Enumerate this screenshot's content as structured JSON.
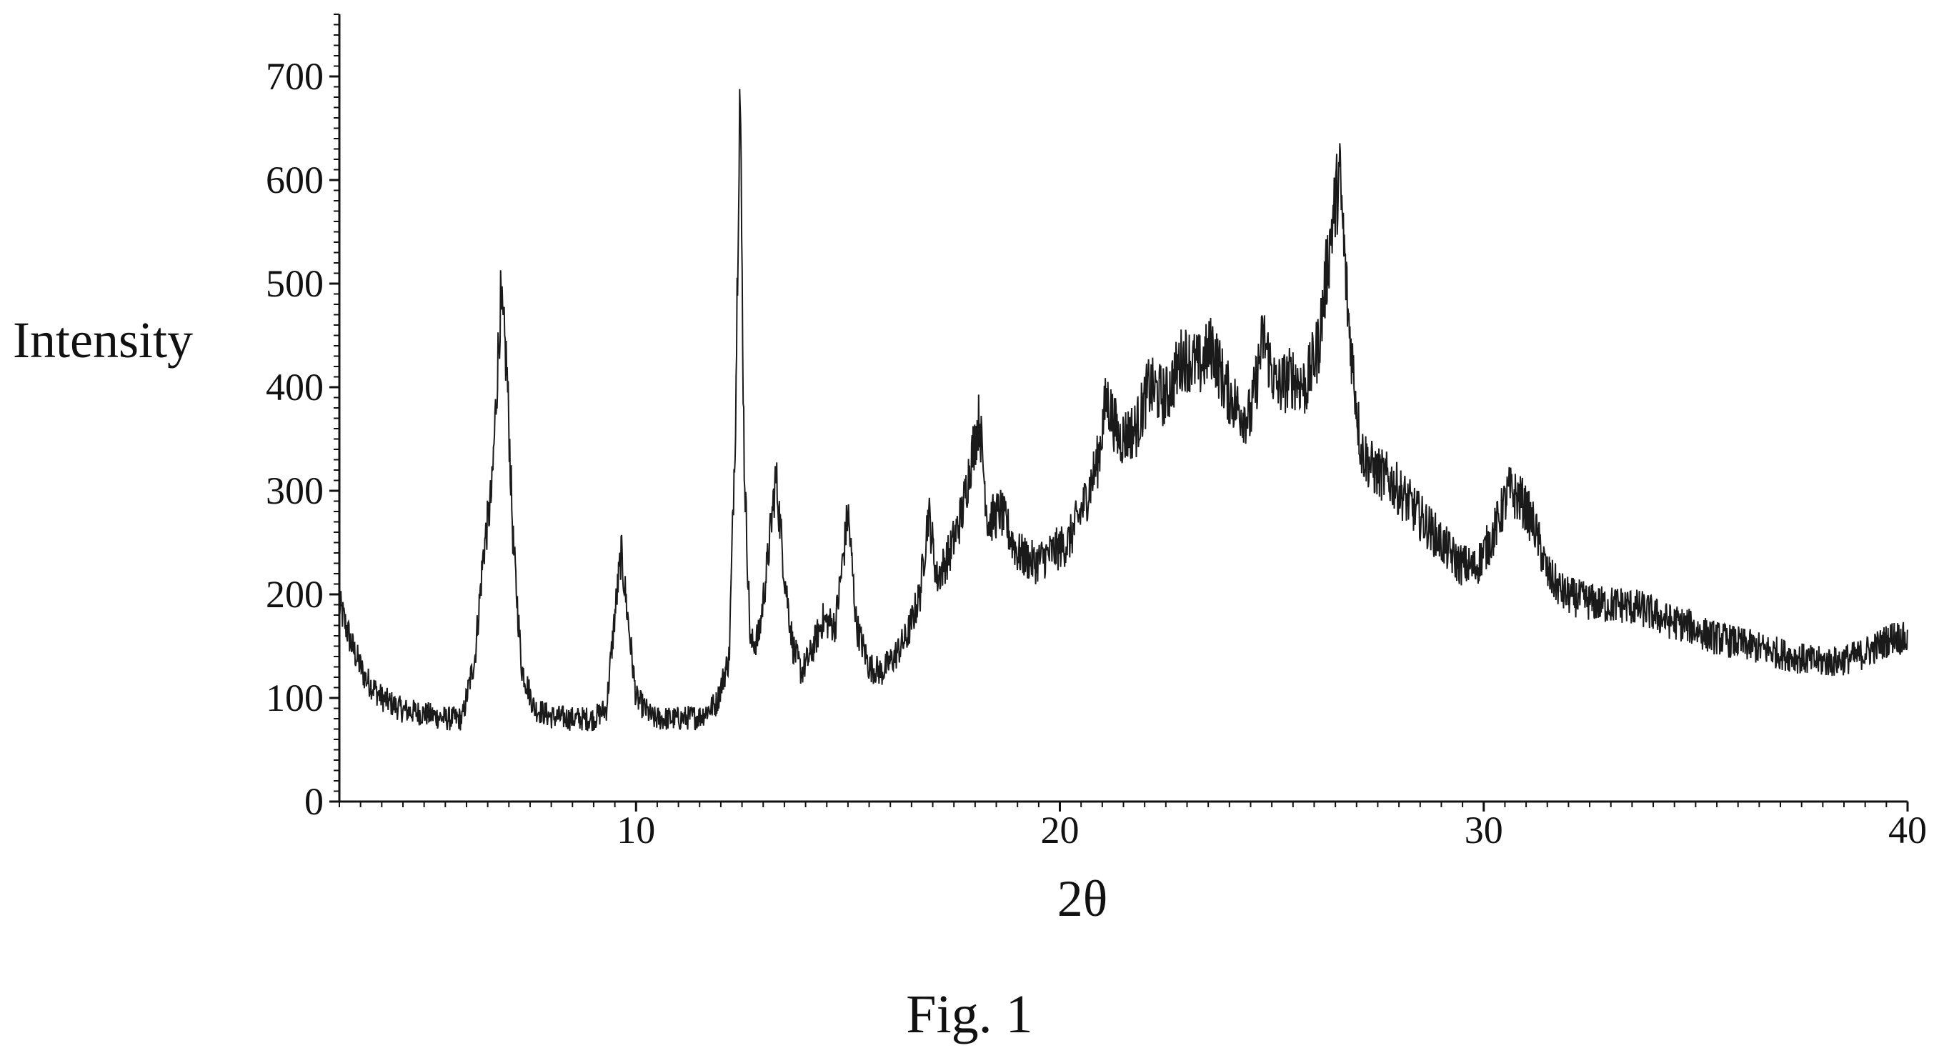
{
  "chart_data": {
    "type": "line",
    "ylabel": "Intensity",
    "xlabel": "2θ",
    "caption": "Fig. 1",
    "xlim": [
      3,
      40
    ],
    "ylim": [
      0,
      760
    ],
    "x_ticks": [
      10,
      20,
      30,
      40
    ],
    "x_tick_labels": [
      "10",
      "20",
      "30",
      "40"
    ],
    "y_ticks": [
      0,
      100,
      200,
      300,
      400,
      500,
      600,
      700
    ],
    "y_tick_labels": [
      "0",
      "100",
      "200",
      "300",
      "400",
      "500",
      "600",
      "700"
    ],
    "grid": false,
    "legend": "none",
    "line_color": "#1a1a1a",
    "series": [
      {
        "values": [
          [
            3.0,
            190
          ],
          [
            3.3,
            150
          ],
          [
            3.6,
            120
          ],
          [
            4.0,
            100
          ],
          [
            4.5,
            88
          ],
          [
            5.0,
            85
          ],
          [
            5.5,
            80
          ],
          [
            5.9,
            80
          ],
          [
            6.2,
            140
          ],
          [
            6.4,
            240
          ],
          [
            6.6,
            300
          ],
          [
            6.8,
            480
          ],
          [
            6.95,
            420
          ],
          [
            7.1,
            250
          ],
          [
            7.3,
            130
          ],
          [
            7.6,
            90
          ],
          [
            8.0,
            82
          ],
          [
            8.5,
            80
          ],
          [
            9.0,
            80
          ],
          [
            9.3,
            90
          ],
          [
            9.5,
            180
          ],
          [
            9.65,
            240
          ],
          [
            9.8,
            180
          ],
          [
            10.0,
            100
          ],
          [
            10.4,
            80
          ],
          [
            11.0,
            80
          ],
          [
            11.5,
            82
          ],
          [
            11.9,
            95
          ],
          [
            12.2,
            140
          ],
          [
            12.35,
            380
          ],
          [
            12.45,
            700
          ],
          [
            12.55,
            330
          ],
          [
            12.7,
            150
          ],
          [
            12.9,
            160
          ],
          [
            13.1,
            230
          ],
          [
            13.3,
            315
          ],
          [
            13.5,
            220
          ],
          [
            13.7,
            150
          ],
          [
            13.9,
            125
          ],
          [
            14.1,
            140
          ],
          [
            14.4,
            175
          ],
          [
            14.7,
            170
          ],
          [
            14.9,
            240
          ],
          [
            15.0,
            280
          ],
          [
            15.2,
            170
          ],
          [
            15.5,
            130
          ],
          [
            15.8,
            125
          ],
          [
            16.1,
            140
          ],
          [
            16.4,
            160
          ],
          [
            16.7,
            200
          ],
          [
            16.9,
            280
          ],
          [
            17.1,
            215
          ],
          [
            17.4,
            240
          ],
          [
            17.7,
            280
          ],
          [
            17.9,
            330
          ],
          [
            18.1,
            370
          ],
          [
            18.3,
            270
          ],
          [
            18.6,
            280
          ],
          [
            19.0,
            240
          ],
          [
            19.4,
            230
          ],
          [
            19.8,
            240
          ],
          [
            20.2,
            250
          ],
          [
            20.6,
            290
          ],
          [
            20.9,
            330
          ],
          [
            21.1,
            390
          ],
          [
            21.4,
            350
          ],
          [
            21.8,
            360
          ],
          [
            22.1,
            400
          ],
          [
            22.5,
            390
          ],
          [
            22.9,
            430
          ],
          [
            23.3,
            420
          ],
          [
            23.6,
            440
          ],
          [
            23.9,
            400
          ],
          [
            24.2,
            380
          ],
          [
            24.5,
            370
          ],
          [
            24.8,
            450
          ],
          [
            25.1,
            400
          ],
          [
            25.5,
            410
          ],
          [
            25.8,
            400
          ],
          [
            26.1,
            440
          ],
          [
            26.4,
            550
          ],
          [
            26.6,
            605
          ],
          [
            26.8,
            470
          ],
          [
            27.1,
            340
          ],
          [
            27.4,
            320
          ],
          [
            27.8,
            310
          ],
          [
            28.2,
            290
          ],
          [
            28.6,
            270
          ],
          [
            29.0,
            250
          ],
          [
            29.4,
            230
          ],
          [
            29.8,
            225
          ],
          [
            30.2,
            255
          ],
          [
            30.6,
            300
          ],
          [
            30.9,
            290
          ],
          [
            31.2,
            265
          ],
          [
            31.5,
            220
          ],
          [
            31.9,
            200
          ],
          [
            32.3,
            195
          ],
          [
            32.8,
            190
          ],
          [
            33.3,
            190
          ],
          [
            33.8,
            185
          ],
          [
            34.3,
            175
          ],
          [
            34.8,
            170
          ],
          [
            35.3,
            160
          ],
          [
            35.8,
            155
          ],
          [
            36.3,
            150
          ],
          [
            36.8,
            145
          ],
          [
            37.3,
            140
          ],
          [
            37.8,
            135
          ],
          [
            38.3,
            135
          ],
          [
            38.8,
            140
          ],
          [
            39.3,
            150
          ],
          [
            39.7,
            160
          ],
          [
            40.0,
            155
          ]
        ]
      }
    ]
  }
}
